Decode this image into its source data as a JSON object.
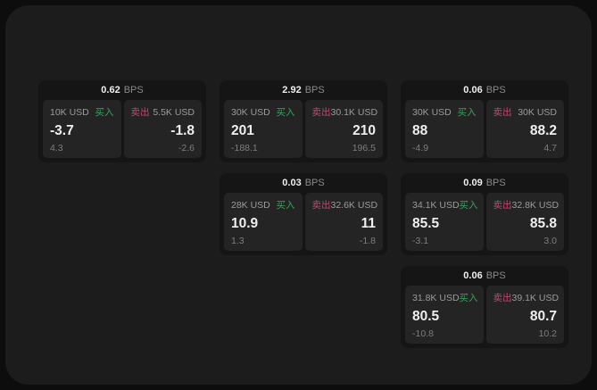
{
  "page": {
    "bg_outer": "#0d0d0d",
    "bg_inner": "#1c1c1c",
    "bg_card": "#151515",
    "bg_panel": "#242424"
  },
  "colors": {
    "buy": "#36a35d",
    "sell": "#c4476d",
    "txt_bright": "#efefef",
    "txt_label": "#9b9b9b",
    "txt_dim": "#8a8a8a",
    "txt_sub": "#7d7d7d"
  },
  "labels": {
    "bps_unit": "BPS",
    "buy": "买入",
    "sell": "卖出"
  },
  "cards": [
    {
      "bps": "0.62",
      "grid": {
        "row": "1",
        "col": "1"
      },
      "buy": {
        "amount": "10K USD",
        "value": "-3.7",
        "sub": "4.3"
      },
      "sell": {
        "amount": "5.5K USD",
        "value": "-1.8",
        "sub": "-2.6"
      }
    },
    {
      "bps": "2.92",
      "grid": {
        "row": "1",
        "col": "2"
      },
      "buy": {
        "amount": "30K USD",
        "value": "201",
        "sub": "-188.1"
      },
      "sell": {
        "amount": "30.1K USD",
        "value": "210",
        "sub": "196.5"
      }
    },
    {
      "bps": "0.06",
      "grid": {
        "row": "1",
        "col": "3"
      },
      "buy": {
        "amount": "30K USD",
        "value": "88",
        "sub": "-4.9"
      },
      "sell": {
        "amount": "30K USD",
        "value": "88.2",
        "sub": "4.7"
      }
    },
    {
      "bps": "0.03",
      "grid": {
        "row": "2",
        "col": "2"
      },
      "buy": {
        "amount": "28K USD",
        "value": "10.9",
        "sub": "1.3"
      },
      "sell": {
        "amount": "32.6K USD",
        "value": "11",
        "sub": "-1.8"
      }
    },
    {
      "bps": "0.09",
      "grid": {
        "row": "2",
        "col": "3"
      },
      "buy": {
        "amount": "34.1K USD",
        "value": "85.5",
        "sub": "-3.1"
      },
      "sell": {
        "amount": "32.8K USD",
        "value": "85.8",
        "sub": "3.0"
      }
    },
    {
      "bps": "0.06",
      "grid": {
        "row": "3",
        "col": "3"
      },
      "buy": {
        "amount": "31.8K USD",
        "value": "80.5",
        "sub": "-10.8"
      },
      "sell": {
        "amount": "39.1K USD",
        "value": "80.7",
        "sub": "10.2"
      }
    }
  ]
}
